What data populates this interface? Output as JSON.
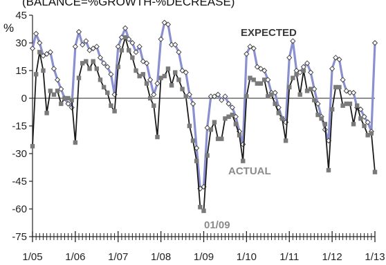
{
  "chart_data": {
    "type": "line",
    "title": "(BALANCE=%GROWTH-%DECREASE)",
    "ylabel": "%",
    "ylim": [
      -75,
      45
    ],
    "y_ticks": [
      45,
      30,
      15,
      0,
      -15,
      -30,
      -45,
      -60,
      -75
    ],
    "x_ticks": [
      "1/05",
      "1/06",
      "1/07",
      "1/08",
      "1/09",
      "1/10",
      "1/11",
      "1/12",
      "1/13"
    ],
    "xlim": [
      2005.0,
      2013.0
    ],
    "grid": "horizontal zero line",
    "annotations": [
      "EXPECTED",
      "ACTUAL",
      "01/09"
    ],
    "series": [
      {
        "name": "EXPECTED",
        "color": "#8a8fd0",
        "marker": "hollow-diamond",
        "x": [
          2005.0,
          2005.083,
          2005.167,
          2005.25,
          2005.333,
          2005.417,
          2005.5,
          2005.583,
          2005.667,
          2005.75,
          2005.833,
          2005.917,
          2006.0,
          2006.083,
          2006.167,
          2006.25,
          2006.333,
          2006.417,
          2006.5,
          2006.583,
          2006.667,
          2006.75,
          2006.833,
          2006.917,
          2007.0,
          2007.083,
          2007.167,
          2007.25,
          2007.333,
          2007.417,
          2007.5,
          2007.583,
          2007.667,
          2007.75,
          2007.833,
          2007.917,
          2008.0,
          2008.083,
          2008.167,
          2008.25,
          2008.333,
          2008.417,
          2008.5,
          2008.583,
          2008.667,
          2008.75,
          2008.833,
          2008.917,
          2009.0,
          2009.083,
          2009.167,
          2009.25,
          2009.333,
          2009.417,
          2009.5,
          2009.583,
          2009.667,
          2009.75,
          2009.833,
          2009.917,
          2010.0,
          2010.083,
          2010.167,
          2010.25,
          2010.333,
          2010.417,
          2010.5,
          2010.583,
          2010.667,
          2010.75,
          2010.833,
          2010.917,
          2011.0,
          2011.083,
          2011.167,
          2011.25,
          2011.333,
          2011.417,
          2011.5,
          2011.583,
          2011.667,
          2011.75,
          2011.833,
          2011.917,
          2012.0,
          2012.083,
          2012.167,
          2012.25,
          2012.333,
          2012.417,
          2012.5,
          2012.583,
          2012.667,
          2012.75,
          2012.833,
          2012.917,
          2013.0
        ],
        "values": [
          27,
          35,
          30,
          23,
          24,
          25,
          16,
          10,
          5,
          0,
          -3,
          -5,
          28,
          36,
          29,
          31,
          26,
          27,
          28,
          22,
          19,
          17,
          13,
          2,
          28,
          33,
          38,
          32,
          30,
          25,
          28,
          20,
          19,
          10,
          2,
          8,
          32,
          41,
          40,
          29,
          29,
          25,
          15,
          14,
          2,
          -3,
          -27,
          -49,
          -48,
          -16,
          1,
          1,
          2,
          -1,
          1,
          -3,
          -5,
          -10,
          -18,
          -25,
          24,
          28,
          27,
          17,
          16,
          15,
          10,
          3,
          3,
          -5,
          -11,
          -13,
          22,
          31,
          15,
          14,
          17,
          19,
          14,
          5,
          -3,
          -10,
          -17,
          -23,
          16,
          22,
          21,
          10,
          4,
          3,
          3,
          -5,
          -6,
          -10,
          -13,
          -18,
          30
        ]
      },
      {
        "name": "ACTUAL",
        "color": "#1a1a1a",
        "marker": "gray-square",
        "x": [
          2005.0,
          2005.083,
          2005.167,
          2005.25,
          2005.333,
          2005.417,
          2005.5,
          2005.583,
          2005.667,
          2005.75,
          2005.833,
          2005.917,
          2006.0,
          2006.083,
          2006.167,
          2006.25,
          2006.333,
          2006.417,
          2006.5,
          2006.583,
          2006.667,
          2006.75,
          2006.833,
          2006.917,
          2007.0,
          2007.083,
          2007.167,
          2007.25,
          2007.333,
          2007.417,
          2007.5,
          2007.583,
          2007.667,
          2007.75,
          2007.833,
          2007.917,
          2008.0,
          2008.083,
          2008.167,
          2008.25,
          2008.333,
          2008.417,
          2008.5,
          2008.583,
          2008.667,
          2008.75,
          2008.833,
          2008.917,
          2009.0,
          2009.083,
          2009.167,
          2009.25,
          2009.333,
          2009.417,
          2009.5,
          2009.583,
          2009.667,
          2009.75,
          2009.833,
          2009.917,
          2010.0,
          2010.083,
          2010.167,
          2010.25,
          2010.333,
          2010.417,
          2010.5,
          2010.583,
          2010.667,
          2010.75,
          2010.833,
          2010.917,
          2011.0,
          2011.083,
          2011.167,
          2011.25,
          2011.333,
          2011.417,
          2011.5,
          2011.583,
          2011.667,
          2011.75,
          2011.833,
          2011.917,
          2012.0,
          2012.083,
          2012.167,
          2012.25,
          2012.333,
          2012.417,
          2012.5,
          2012.583,
          2012.667,
          2012.75,
          2012.833,
          2012.917,
          2013.0
        ],
        "values": [
          -26,
          13,
          25,
          15,
          -8,
          4,
          2,
          4,
          -3,
          0,
          0,
          -1,
          -24,
          11,
          19,
          20,
          16,
          20,
          16,
          10,
          6,
          3,
          -4,
          -7,
          17,
          26,
          33,
          26,
          22,
          15,
          12,
          13,
          8,
          0,
          -4,
          -21,
          11,
          12,
          16,
          7,
          14,
          10,
          5,
          1,
          -15,
          -23,
          -34,
          -59,
          -61,
          -31,
          -17,
          -13,
          -22,
          -22,
          -11,
          -10,
          -9,
          -14,
          -20,
          -34,
          1,
          11,
          10,
          8,
          8,
          10,
          1,
          2,
          -3,
          -8,
          -11,
          -23,
          6,
          11,
          13,
          2,
          15,
          4,
          5,
          -1,
          -9,
          -11,
          -14,
          -39,
          -6,
          6,
          6,
          -4,
          -3,
          -3,
          -14,
          -4,
          -11,
          -15,
          -20,
          -19,
          -40
        ]
      }
    ]
  }
}
